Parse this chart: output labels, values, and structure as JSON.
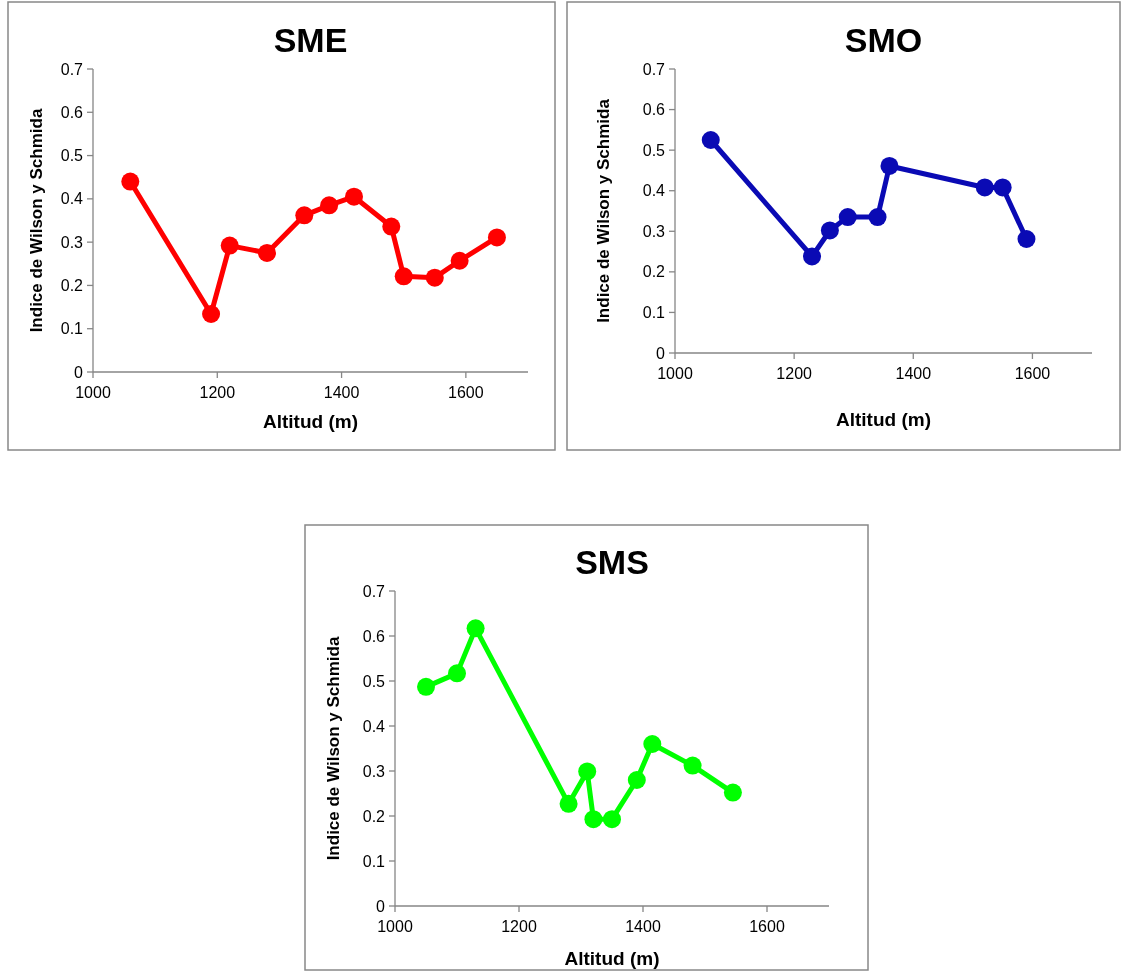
{
  "chart_data": [
    {
      "type": "line",
      "title": "SME",
      "xlabel": "Altitud (m)",
      "ylabel": "Indice de Wilson y Schmida",
      "x": [
        1060,
        1190,
        1220,
        1280,
        1340,
        1380,
        1420,
        1480,
        1500,
        1550,
        1590,
        1650
      ],
      "values": [
        0.44,
        0.134,
        0.292,
        0.275,
        0.362,
        0.385,
        0.405,
        0.336,
        0.221,
        0.218,
        0.257,
        0.311
      ],
      "color": "#ff0000",
      "marker": "circle",
      "xlim": [
        1000,
        1700
      ],
      "xticks": [
        1000,
        1200,
        1400,
        1600
      ],
      "ylim": [
        0,
        0.7
      ],
      "yticks": [
        0,
        0.1,
        0.2,
        0.3,
        0.4,
        0.5,
        0.6,
        0.7
      ]
    },
    {
      "type": "line",
      "title": "SMO",
      "xlabel": "Altitud (m)",
      "ylabel": "Indice de Wilson y Schmida",
      "x": [
        1060,
        1230,
        1260,
        1290,
        1340,
        1360,
        1520,
        1550,
        1590
      ],
      "values": [
        0.525,
        0.238,
        0.302,
        0.335,
        0.335,
        0.461,
        0.408,
        0.408,
        0.281
      ],
      "color": "#0a0ab4",
      "marker": "circle",
      "xlim": [
        1000,
        1700
      ],
      "xticks": [
        1000,
        1200,
        1400,
        1600
      ],
      "ylim": [
        0,
        0.7
      ],
      "yticks": [
        0,
        0.1,
        0.2,
        0.3,
        0.4,
        0.5,
        0.6,
        0.7
      ]
    },
    {
      "type": "line",
      "title": "SMS",
      "xlabel": "Altitud (m)",
      "ylabel": "Indice de Wilson y Schmida",
      "x": [
        1050,
        1100,
        1130,
        1280,
        1310,
        1320,
        1350,
        1390,
        1415,
        1480,
        1545
      ],
      "values": [
        0.487,
        0.517,
        0.617,
        0.227,
        0.299,
        0.193,
        0.193,
        0.28,
        0.36,
        0.312,
        0.252
      ],
      "color": "#00ff00",
      "marker": "circle",
      "xlim": [
        1000,
        1700
      ],
      "xticks": [
        1000,
        1200,
        1400,
        1600
      ],
      "ylim": [
        0,
        0.7
      ],
      "yticks": [
        0,
        0.1,
        0.2,
        0.3,
        0.4,
        0.5,
        0.6,
        0.7
      ]
    }
  ]
}
